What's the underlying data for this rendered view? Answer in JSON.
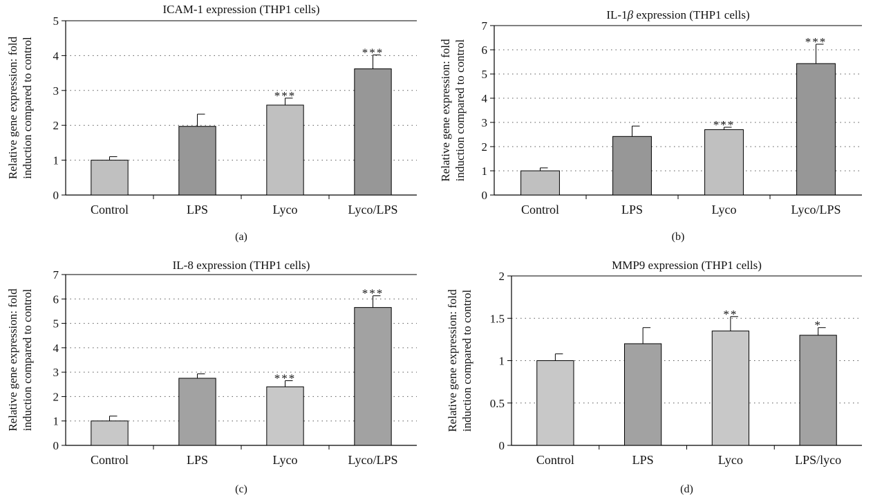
{
  "chart_data": [
    {
      "type": "bar",
      "title": "ICAM-1 expression (THP1 cells)",
      "ylabel": [
        "Relative gene expression: fold",
        "induction compared to control"
      ],
      "xlabel": "",
      "categories": [
        "Control",
        "LPS",
        "Lyco",
        "Lyco/LPS"
      ],
      "values": [
        1.0,
        1.97,
        2.58,
        3.62
      ],
      "errors": [
        0.1,
        0.35,
        0.2,
        0.4
      ],
      "significance": [
        "",
        "",
        "***",
        "***"
      ],
      "ylim": [
        0,
        5
      ],
      "yticks": [
        "0",
        "1",
        "2",
        "3",
        "4",
        "5"
      ],
      "grid": true,
      "colors": [
        "#c0c0c0",
        "#979797",
        "#c0c0c0",
        "#979797"
      ],
      "panel_label": "(a)"
    },
    {
      "type": "bar",
      "title_parts": [
        "IL-1",
        "β",
        " expression (THP1 cells)"
      ],
      "ylabel": [
        "Relative gene expression: fold",
        "induction compared to control"
      ],
      "xlabel": "",
      "categories": [
        "Control",
        "LPS",
        "Lyco",
        "Lyco/LPS"
      ],
      "values": [
        1.0,
        2.42,
        2.7,
        5.43
      ],
      "errors": [
        0.12,
        0.43,
        0.1,
        0.8
      ],
      "significance": [
        "",
        "",
        "***",
        "***"
      ],
      "ylim": [
        0,
        7
      ],
      "yticks": [
        "0",
        "1",
        "2",
        "3",
        "4",
        "5",
        "6",
        "7"
      ],
      "grid": true,
      "colors": [
        "#c0c0c0",
        "#979797",
        "#c0c0c0",
        "#979797"
      ],
      "panel_label": "(b)"
    },
    {
      "type": "bar",
      "title": "IL-8 expression (THP1 cells)",
      "ylabel": [
        "Relative gene expression: fold",
        "induction compared to control"
      ],
      "xlabel": "",
      "categories": [
        "Control",
        "LPS",
        "Lyco",
        "Lyco/LPS"
      ],
      "values": [
        1.0,
        2.75,
        2.4,
        5.65
      ],
      "errors": [
        0.2,
        0.18,
        0.25,
        0.48
      ],
      "significance": [
        "",
        "",
        "***",
        "***"
      ],
      "ylim": [
        0,
        7
      ],
      "yticks": [
        "0",
        "1",
        "2",
        "3",
        "4",
        "5",
        "6",
        "7"
      ],
      "grid": true,
      "colors": [
        "#c8c8c8",
        "#a2a2a2",
        "#c8c8c8",
        "#a2a2a2"
      ],
      "panel_label": "(c)"
    },
    {
      "type": "bar",
      "title": "MMP9 expression (THP1 cells)",
      "ylabel": [
        "Relative gene expression: fold",
        "induction compared to control"
      ],
      "xlabel": "",
      "categories": [
        "Control",
        "LPS",
        "Lyco",
        "LPS/lyco"
      ],
      "values": [
        1.0,
        1.2,
        1.35,
        1.3
      ],
      "errors": [
        0.08,
        0.19,
        0.17,
        0.09
      ],
      "significance": [
        "",
        "",
        "**",
        "*"
      ],
      "ylim": [
        0,
        2
      ],
      "yticks": [
        "0",
        "0.5",
        "1",
        "1.5",
        "2"
      ],
      "grid": true,
      "colors": [
        "#c8c8c8",
        "#a2a2a2",
        "#c8c8c8",
        "#a2a2a2"
      ],
      "panel_label": "(d)"
    }
  ]
}
